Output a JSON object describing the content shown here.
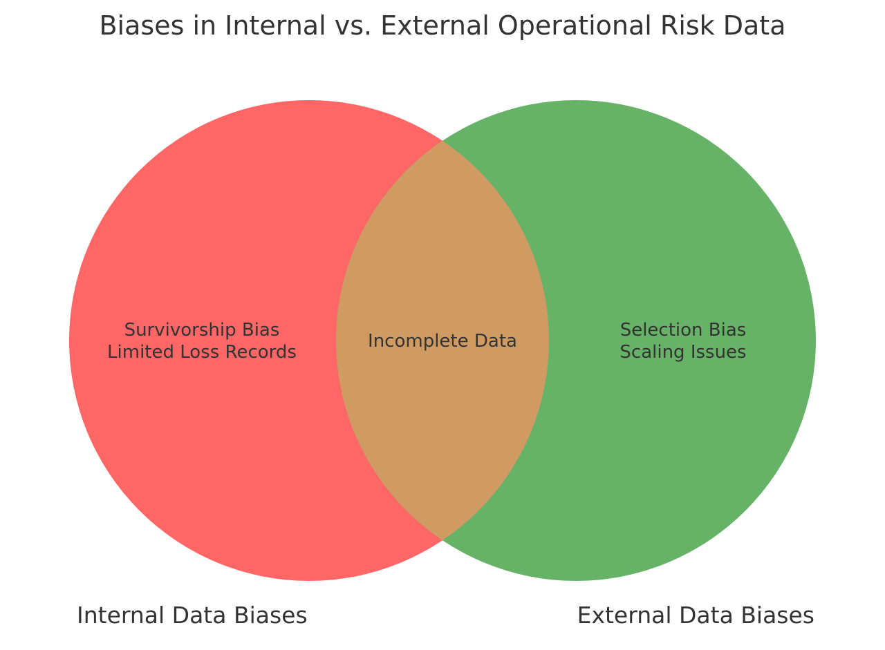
{
  "title": "Biases in Internal vs. External Operational Risk Data",
  "sets": {
    "internal": {
      "label": "Internal Data Biases",
      "color": "#ff6666",
      "items": [
        "Survivorship Bias",
        "Limited Loss Records"
      ]
    },
    "external": {
      "label": "External Data Biases",
      "color": "#66b266",
      "items": [
        "Selection Bias",
        "Scaling Issues"
      ]
    },
    "overlap": {
      "color": "#cf9b63",
      "items": [
        "Incomplete Data"
      ]
    }
  }
}
